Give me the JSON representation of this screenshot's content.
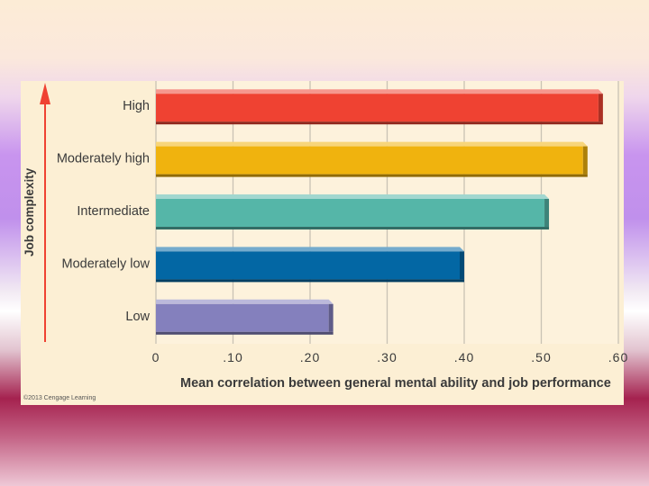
{
  "chart_data": {
    "type": "bar",
    "orientation": "horizontal",
    "categories": [
      "High",
      "Moderately high",
      "Intermediate",
      "Moderately low",
      "Low"
    ],
    "values": [
      0.58,
      0.56,
      0.51,
      0.4,
      0.23
    ],
    "colors": [
      "#ef4232",
      "#f0b30e",
      "#55b6a8",
      "#0367a4",
      "#8480bd"
    ],
    "xlim": [
      0,
      0.6
    ],
    "xticks": [
      0,
      0.1,
      0.2,
      0.3,
      0.4,
      0.5,
      0.6
    ],
    "xtick_labels": [
      "0",
      ".10",
      ".20",
      ".30",
      ".40",
      ".50",
      ".60"
    ],
    "xlabel": "Mean correlation between general mental ability and job performance",
    "ylabel": "Job complexity",
    "grid": true
  },
  "footer": {
    "copyright": "©2013 Cengage Learning"
  }
}
